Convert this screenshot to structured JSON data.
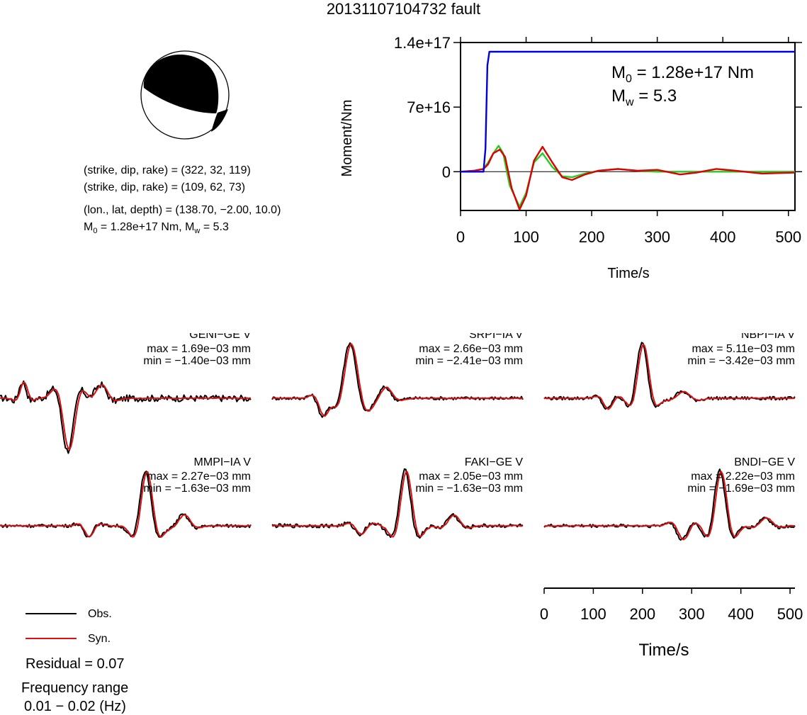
{
  "title": "20131107104732 fault",
  "beachball": {
    "nodal_plane_1": "(strike, dip, rake) = (322, 32, 119)",
    "nodal_plane_2": "(strike, dip, rake) = (109, 62, 73)",
    "location": "(lon., lat, depth) = (138.70, −2.00, 10.0)",
    "moment_prefix": "M",
    "moment_sub": "0",
    "moment_value": " = 1.28e+17 Nm, M",
    "mw_sub": "w",
    "mw_value": " = 5.3"
  },
  "moment_plot": {
    "ylabel": "Moment/Nm",
    "xlabel": "Time/s",
    "y_tick_labels": [
      "1.4e+17",
      "7e+16",
      "0"
    ],
    "x_tick_labels": [
      "0",
      "100",
      "200",
      "300",
      "400",
      "500"
    ],
    "annot_m0_prefix": "M",
    "annot_m0_sub": "0",
    "annot_m0_value": " = 1.28e+17 Nm",
    "annot_mw_prefix": "M",
    "annot_mw_sub": "w",
    "annot_mw_value": " = 5.3"
  },
  "chart_data": [
    {
      "type": "line",
      "xlabel": "Time/s",
      "ylabel": "Moment/Nm",
      "xlim": [
        0,
        510
      ],
      "ylim": [
        -4.2e+16,
        1.4e+17
      ],
      "y_ticks": [
        0,
        7e+16,
        1.4e+17
      ],
      "x_ticks": [
        0,
        100,
        200,
        300,
        400,
        500
      ],
      "series": [
        {
          "color": "#0000dd",
          "x": [
            0,
            35,
            38,
            41,
            44,
            510
          ],
          "y": [
            0,
            0,
            2.5e+16,
            1.15e+17,
            1.3e+17,
            1.3e+17
          ]
        },
        {
          "color": "#22cc22",
          "x": [
            0,
            20,
            35,
            42,
            50,
            58,
            65,
            75,
            90,
            100,
            112,
            125,
            140,
            155,
            170,
            190,
            210,
            240,
            270,
            300,
            350,
            400,
            450,
            510
          ],
          "y": [
            0,
            1000000000000000.0,
            3000000000000000.0,
            1e+16,
            2e+16,
            2.8e+16,
            2e+16,
            -1.5e+16,
            -3.8e+16,
            -2.3e+16,
            1e+16,
            2e+16,
            5000000000000000.0,
            -5000000000000000.0,
            -6000000000000000.0,
            -2000000000000000.0,
            1000000000000000.0,
            3000000000000000.0,
            1000000000000000.0,
            0,
            0,
            0,
            0,
            0
          ]
        },
        {
          "color": "#dd0000",
          "x": [
            0,
            20,
            35,
            42,
            50,
            60,
            68,
            78,
            90,
            100,
            112,
            125,
            140,
            155,
            170,
            190,
            210,
            240,
            270,
            300,
            335,
            360,
            390,
            420,
            460,
            510
          ],
          "y": [
            0,
            1000000000000000.0,
            3000000000000000.0,
            8000000000000000.0,
            2e+16,
            2.4e+16,
            1.6e+16,
            -1.8e+16,
            -4.1e+16,
            -2.6e+16,
            1.2e+16,
            2.7e+16,
            1e+16,
            -6000000000000000.0,
            -9000000000000000.0,
            -3000000000000000.0,
            1000000000000000.0,
            3000000000000000.0,
            1000000000000000.0,
            2000000000000000.0,
            -3000000000000000.0,
            -1000000000000000.0,
            3000000000000000.0,
            1000000000000000.0,
            -2000000000000000.0,
            -1000000000000000.0
          ]
        }
      ]
    },
    {
      "type": "line",
      "xlabel": "Time/s",
      "xlim": [
        0,
        510
      ],
      "x_ticks": [
        0,
        100,
        200,
        300,
        400,
        500
      ],
      "stations": [
        {
          "name": "GENI−GE V",
          "max": "max = 1.69e−03 mm",
          "min": "min = −1.40e−03 mm"
        },
        {
          "name": "SRPI−IA V",
          "max": "max = 2.66e−03 mm",
          "min": "min = −2.41e−03 mm"
        },
        {
          "name": "NBPI−IA V",
          "max": "max = 5.11e−03 mm",
          "min": "min = −3.42e−03 mm"
        },
        {
          "name": "MMPI−IA V",
          "max": "max = 2.27e−03 mm",
          "min": "min = −1.63e−03 mm"
        },
        {
          "name": "FAKI−GE V",
          "max": "max = 2.05e−03 mm",
          "min": "min = −1.63e−03 mm"
        },
        {
          "name": "BNDI−GE V",
          "max": "max = 2.22e−03 mm",
          "min": "min = −1.69e−03 mm"
        }
      ],
      "series": [
        {
          "name": "Obs.",
          "color": "#000000"
        },
        {
          "name": "Syn.",
          "color": "#dd1111"
        }
      ]
    }
  ],
  "waveform_axis": {
    "xlabel": "Time/s",
    "x_tick_labels": [
      "0",
      "100",
      "200",
      "300",
      "400",
      "500"
    ]
  },
  "legend": {
    "obs_label": "Obs.",
    "syn_label": "Syn.",
    "residual": "Residual = 0.07",
    "freq_title": "Frequency range",
    "freq_value": "0.01 − 0.02 (Hz)"
  },
  "colors": {
    "observed": "#000000",
    "synthetic": "#dd1111",
    "moment_curve": "#0000dd",
    "green_curve": "#22cc22"
  }
}
